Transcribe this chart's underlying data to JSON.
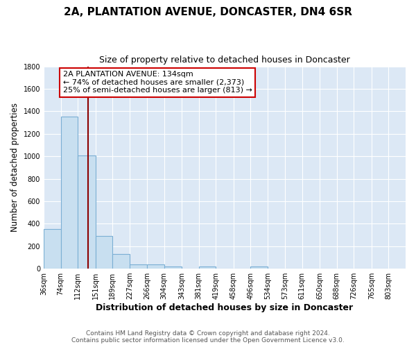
{
  "title": "2A, PLANTATION AVENUE, DONCASTER, DN4 6SR",
  "subtitle": "Size of property relative to detached houses in Doncaster",
  "xlabel": "Distribution of detached houses by size in Doncaster",
  "ylabel": "Number of detached properties",
  "bar_color": "#c8dff0",
  "bar_edge_color": "#7bafd4",
  "fig_background_color": "#ffffff",
  "plot_background_color": "#dce8f5",
  "grid_color": "#ffffff",
  "bin_labels": [
    "36sqm",
    "74sqm",
    "112sqm",
    "151sqm",
    "189sqm",
    "227sqm",
    "266sqm",
    "304sqm",
    "343sqm",
    "381sqm",
    "419sqm",
    "458sqm",
    "496sqm",
    "534sqm",
    "573sqm",
    "611sqm",
    "650sqm",
    "688sqm",
    "726sqm",
    "765sqm",
    "803sqm"
  ],
  "bin_edges": [
    36,
    74,
    112,
    151,
    189,
    227,
    266,
    304,
    343,
    381,
    419,
    458,
    496,
    534,
    573,
    611,
    650,
    688,
    726,
    765,
    803
  ],
  "bar_heights": [
    355,
    1350,
    1010,
    290,
    130,
    40,
    35,
    20,
    0,
    20,
    0,
    0,
    20,
    0,
    0,
    0,
    0,
    0,
    0,
    0
  ],
  "property_size": 134,
  "vline_color": "#8b0000",
  "annotation_title": "2A PLANTATION AVENUE: 134sqm",
  "annotation_line1": "← 74% of detached houses are smaller (2,373)",
  "annotation_line2": "25% of semi-detached houses are larger (813) →",
  "annotation_box_color": "#ffffff",
  "annotation_box_edge_color": "#cc0000",
  "ylim": [
    0,
    1800
  ],
  "yticks": [
    0,
    200,
    400,
    600,
    800,
    1000,
    1200,
    1400,
    1600,
    1800
  ],
  "footer_line1": "Contains HM Land Registry data © Crown copyright and database right 2024.",
  "footer_line2": "Contains public sector information licensed under the Open Government Licence v3.0."
}
